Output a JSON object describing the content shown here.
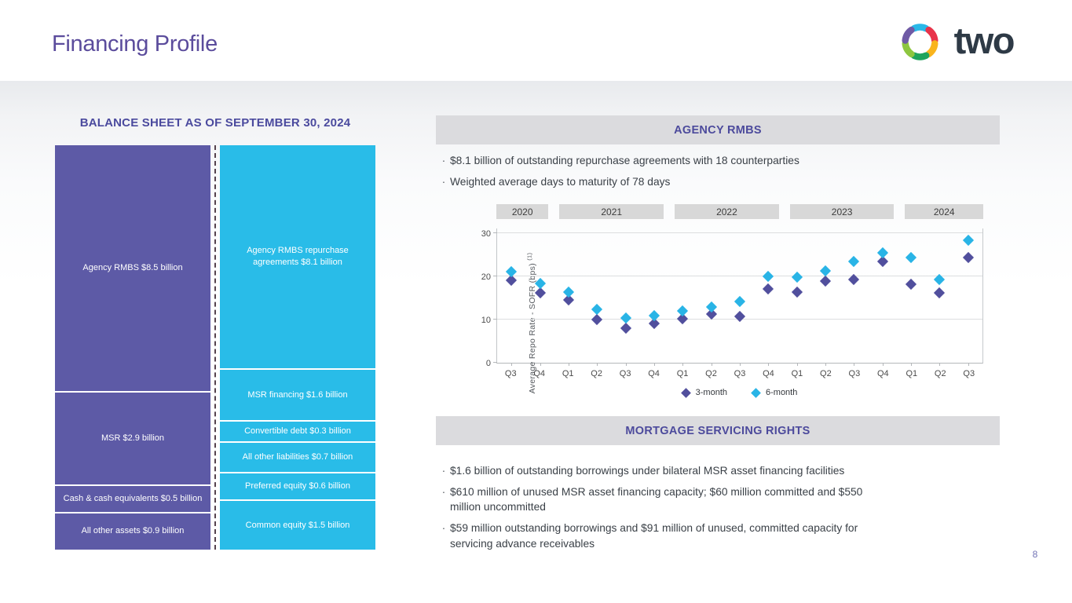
{
  "slide": {
    "title": "Financing Profile",
    "logo_text": "two",
    "page_number": "8"
  },
  "colors": {
    "accent_purple": "#4c4a9c",
    "bar_purple": "#5d5aa6",
    "bar_cyan": "#29bce8",
    "series_3m_purple": "#514f9d",
    "series_6m_cyan": "#29b4e6",
    "logo_palette": [
      "#29b8e8",
      "#e8334a",
      "#f9b41d",
      "#1fa45c",
      "#8dc63f",
      "#6f5aa5"
    ]
  },
  "agency_rmbs": {
    "header": "AGENCY RMBS",
    "bullets": [
      "$8.1 billion of outstanding repurchase agreements with 18 counterparties",
      "Weighted average days to maturity of 78 days"
    ]
  },
  "msr": {
    "header": "MORTGAGE SERVICING RIGHTS",
    "bullets": [
      "$1.6 billion of outstanding borrowings under bilateral MSR asset financing facilities",
      "$610 million of unused MSR asset financing capacity; $60 million committed and $550\nmillion uncommitted",
      "$59 million outstanding borrowings and $91 million of unused, committed capacity for\nservicing advance receivables"
    ]
  },
  "chart_data": [
    {
      "type": "stacked-bar",
      "title": "BALANCE SHEET AS OF SEPTEMBER 30, 2024",
      "bars": [
        {
          "name": "assets",
          "color": "#5d5aa6",
          "segments": [
            {
              "label": "Agency RMBS $8.5 billion",
              "value": 8.5
            },
            {
              "label": "MSR $2.9 billion",
              "value": 2.9
            },
            {
              "label": "Cash & cash equivalents $0.5 billion",
              "value": 0.5
            },
            {
              "label": "All other assets $0.9 billion",
              "value": 0.9
            }
          ]
        },
        {
          "name": "liabilities-and-equity",
          "color": "#29bce8",
          "segments": [
            {
              "label": "Agency RMBS repurchase\nagreements $8.1 billion",
              "value": 8.1
            },
            {
              "label": "MSR financing $1.6 billion",
              "value": 1.6
            },
            {
              "label": "Convertible debt $0.3 billion",
              "value": 0.3
            },
            {
              "label": "All other liabilities $0.7 billion",
              "value": 0.7
            },
            {
              "label": "Preferred equity $0.6 billion",
              "value": 0.6
            },
            {
              "label": "Common equity $1.5 billion",
              "value": 1.5
            }
          ]
        }
      ]
    },
    {
      "type": "scatter",
      "ylabel": "Average Repo Rate - SOFR (bps)",
      "ylabel_superscript": "(1)",
      "ylim": [
        0,
        30
      ],
      "yticks": [
        0,
        10,
        20,
        30
      ],
      "grid": "horizontal",
      "legend_position": "bottom",
      "year_groups": [
        {
          "label": "2020",
          "quarters": 2
        },
        {
          "label": "2021",
          "quarters": 4
        },
        {
          "label": "2022",
          "quarters": 4
        },
        {
          "label": "2023",
          "quarters": 4
        },
        {
          "label": "2024",
          "quarters": 3
        }
      ],
      "categories": [
        "Q3",
        "Q4",
        "Q1",
        "Q2",
        "Q3",
        "Q4",
        "Q1",
        "Q2",
        "Q3",
        "Q4",
        "Q1",
        "Q2",
        "Q3",
        "Q4",
        "Q1",
        "Q2",
        "Q3"
      ],
      "series": [
        {
          "name": "3-month",
          "color": "#514f9d",
          "values": [
            19,
            16.2,
            14.5,
            10,
            8,
            9.1,
            10.2,
            11.2,
            10.7,
            17,
            16.4,
            18.8,
            19.2,
            23.3,
            18.2,
            16.2,
            24.3
          ]
        },
        {
          "name": "6-month",
          "color": "#29b4e6",
          "values": [
            21,
            18.3,
            16.3,
            12.3,
            10.4,
            10.8,
            12,
            12.9,
            14.1,
            20,
            19.8,
            21.3,
            23.4,
            25.4,
            24.3,
            19.2,
            28.2
          ]
        }
      ]
    }
  ]
}
